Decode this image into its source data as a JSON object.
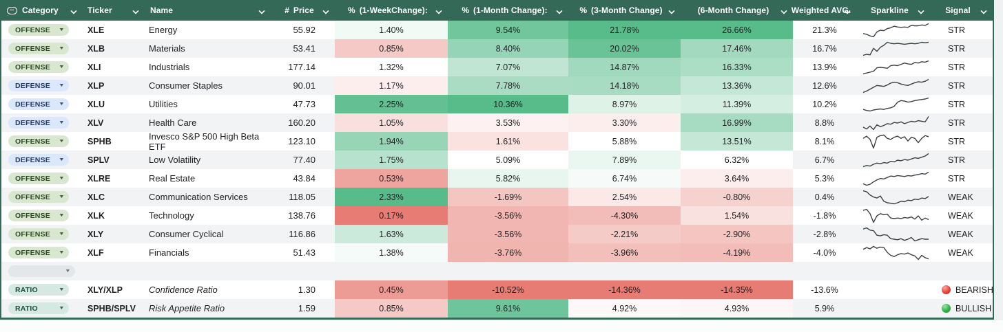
{
  "table": {
    "columns": [
      {
        "key": "category",
        "label": "Category",
        "type_icon": "dropdown-chip",
        "align": "left"
      },
      {
        "key": "ticker",
        "label": "Ticker",
        "align": "left"
      },
      {
        "key": "name",
        "label": "Name",
        "align": "left"
      },
      {
        "key": "price",
        "label": "Price",
        "type_icon": "number",
        "align": "center"
      },
      {
        "key": "wk",
        "label": "(1-WeekChange):",
        "type_icon": "percent",
        "align": "center"
      },
      {
        "key": "m1",
        "label": "(1-Month Change):",
        "type_icon": "percent",
        "align": "center"
      },
      {
        "key": "m3",
        "label": "(3-Month Change)",
        "type_icon": "percent",
        "align": "center"
      },
      {
        "key": "m6",
        "label": "(6-Month Change)",
        "align": "center"
      },
      {
        "key": "wavg",
        "label": "Weighted AVG.",
        "align": "center"
      },
      {
        "key": "spark",
        "label": "Sparkline",
        "align": "center"
      },
      {
        "key": "signal",
        "label": "Signal",
        "align": "center"
      }
    ],
    "type_icons": {
      "number": "#",
      "percent": "%"
    },
    "rows": [
      {
        "category": "OFFENSE",
        "ticker": "XLE",
        "name": "Energy",
        "price": "55.92",
        "wk": 1.4,
        "m1": 9.54,
        "m3": 21.78,
        "m6": 26.66,
        "wavg": 21.3,
        "signal": {
          "text": "STR"
        },
        "spark": [
          22,
          20,
          16,
          14,
          26,
          30,
          29,
          34,
          36,
          40,
          38,
          37,
          38,
          37,
          42,
          41,
          41,
          43,
          42,
          46
        ]
      },
      {
        "category": "OFFENSE",
        "ticker": "XLB",
        "name": "Materials",
        "price": "53.41",
        "wk": 0.85,
        "m1": 8.4,
        "m3": 20.02,
        "m6": 17.46,
        "wavg": 16.7,
        "signal": {
          "text": "STR"
        },
        "spark": [
          10,
          12,
          11,
          24,
          18,
          26,
          30,
          36,
          34,
          33,
          34,
          33,
          32,
          33,
          34,
          33,
          34,
          36,
          35,
          36
        ]
      },
      {
        "category": "OFFENSE",
        "ticker": "XLI",
        "name": "Industrials",
        "price": "177.14",
        "wk": 1.32,
        "m1": 7.07,
        "m3": 14.87,
        "m6": 16.33,
        "wavg": 13.9,
        "signal": {
          "text": "STR"
        },
        "spark": [
          8,
          10,
          12,
          14,
          22,
          23,
          22,
          21,
          27,
          28,
          27,
          30,
          33,
          31,
          30,
          34,
          33,
          36,
          35,
          38
        ]
      },
      {
        "category": "DEFENSE",
        "ticker": "XLP",
        "name": "Consumer Staples",
        "price": "90.01",
        "wk": 1.17,
        "m1": 7.78,
        "m3": 14.18,
        "m6": 13.36,
        "wavg": 12.6,
        "signal": {
          "text": "STR"
        },
        "spark": [
          8,
          11,
          15,
          19,
          23,
          22,
          21,
          24,
          28,
          30,
          29,
          26,
          24,
          23,
          26,
          29,
          31,
          30,
          32,
          36
        ]
      },
      {
        "category": "DEFENSE",
        "ticker": "XLU",
        "name": "Utilities",
        "price": "47.73",
        "wk": 2.25,
        "m1": 10.36,
        "m3": 8.97,
        "m6": 11.39,
        "wavg": 10.2,
        "signal": {
          "text": "STR"
        },
        "spark": [
          10,
          8,
          7,
          9,
          10,
          11,
          10,
          12,
          13,
          16,
          24,
          27,
          26,
          24,
          25,
          27,
          28,
          29,
          30,
          32
        ]
      },
      {
        "category": "DEFENSE",
        "ticker": "XLV",
        "name": "Health Care",
        "price": "160.20",
        "wk": 1.05,
        "m1": 3.53,
        "m3": 3.3,
        "m6": 16.99,
        "wavg": 8.8,
        "signal": {
          "text": "STR"
        },
        "spark": [
          16,
          13,
          18,
          12,
          20,
          17,
          19,
          22,
          21,
          24,
          23,
          25,
          22,
          24,
          26,
          25,
          27,
          26,
          25,
          34
        ]
      },
      {
        "category": "OFFENSE",
        "ticker": "SPHB",
        "name": "Invesco S&P 500 High Beta ETF",
        "price": "123.10",
        "wk": 1.94,
        "m1": 1.61,
        "m3": 5.88,
        "m6": 13.51,
        "wavg": 8.1,
        "signal": {
          "text": "STR"
        },
        "spark": [
          26,
          30,
          24,
          8,
          28,
          31,
          32,
          26,
          24,
          28,
          30,
          26,
          29,
          21,
          28,
          26,
          18,
          26,
          31,
          29
        ]
      },
      {
        "category": "DEFENSE",
        "ticker": "SPLV",
        "name": "Low Volatility",
        "price": "77.40",
        "wk": 1.75,
        "m1": 5.09,
        "m3": 7.89,
        "m6": 6.32,
        "wavg": 6.7,
        "signal": {
          "text": "STR"
        },
        "spark": [
          8,
          10,
          9,
          12,
          14,
          13,
          15,
          14,
          17,
          16,
          19,
          18,
          20,
          19,
          21,
          23,
          22,
          24,
          26,
          30
        ]
      },
      {
        "category": "OFFENSE",
        "ticker": "XLRE",
        "name": "Real Estate",
        "price": "43.84",
        "wk": 0.53,
        "m1": 5.82,
        "m3": 6.74,
        "m6": 3.64,
        "wavg": 5.3,
        "signal": {
          "text": "STR"
        },
        "spark": [
          12,
          9,
          11,
          16,
          20,
          23,
          22,
          25,
          28,
          27,
          29,
          28,
          27,
          29,
          28,
          30,
          31,
          33,
          32,
          36
        ]
      },
      {
        "category": "OFFENSE",
        "ticker": "XLC",
        "name": "Communication Services",
        "price": "118.05",
        "wk": 2.33,
        "m1": -1.69,
        "m3": 2.54,
        "m6": -0.8,
        "wavg": 0.4,
        "signal": {
          "text": "WEAK"
        },
        "spark": [
          34,
          32,
          26,
          22,
          20,
          24,
          14,
          11,
          10,
          9,
          11,
          14,
          13,
          16,
          15,
          18,
          17,
          20,
          19,
          23
        ]
      },
      {
        "category": "OFFENSE",
        "ticker": "XLK",
        "name": "Technology",
        "price": "138.76",
        "wk": 0.17,
        "m1": -3.56,
        "m3": -4.3,
        "m6": 1.54,
        "wavg": -1.8,
        "signal": {
          "text": "WEAK"
        },
        "spark": [
          32,
          34,
          26,
          10,
          22,
          26,
          24,
          25,
          18,
          17,
          18,
          17,
          19,
          18,
          20,
          16,
          22,
          14,
          18,
          15
        ]
      },
      {
        "category": "OFFENSE",
        "ticker": "XLY",
        "name": "Consumer Cyclical",
        "price": "116.86",
        "wk": 1.63,
        "m1": -3.56,
        "m3": -2.21,
        "m6": -2.9,
        "wavg": -2.8,
        "signal": {
          "text": "WEAK"
        },
        "spark": [
          32,
          34,
          30,
          29,
          21,
          20,
          22,
          21,
          15,
          14,
          13,
          15,
          12,
          14,
          17,
          11,
          13,
          15,
          14,
          14
        ]
      },
      {
        "category": "OFFENSE",
        "ticker": "XLF",
        "name": "Financials",
        "price": "51.43",
        "wk": 1.38,
        "m1": -3.76,
        "m3": -3.96,
        "m6": -4.19,
        "wavg": -4.0,
        "signal": {
          "text": "WEAK"
        },
        "spark": [
          26,
          29,
          27,
          31,
          28,
          30,
          29,
          21,
          16,
          14,
          17,
          19,
          18,
          20,
          17,
          15,
          9,
          16,
          12,
          10
        ]
      },
      {
        "empty": true
      },
      {
        "category": "RATIO",
        "ticker": "XLY/XLP",
        "name": "Confidence Ratio",
        "italic": true,
        "price": "1.30",
        "wk": 0.45,
        "m1": -10.52,
        "m3": -14.36,
        "m6": -14.35,
        "wavg": -13.6,
        "signal": {
          "text": "BEARISH",
          "dot": "bearish"
        }
      },
      {
        "category": "RATIO",
        "ticker": "SPHB/SPLV",
        "name": "Risk Appetite Ratio",
        "italic": true,
        "price": "1.59,",
        "wk": 0.85,
        "m1": 9.61,
        "m3": 4.92,
        "m6": 4.93,
        "wavg": 5.9,
        "signal": {
          "text": "BULLISH",
          "dot": "bullish"
        }
      }
    ],
    "category_styles": {
      "OFFENSE": {
        "bg": "#d9e7d1",
        "text": "#2c4a21"
      },
      "DEFENSE": {
        "bg": "#dbe7fa",
        "text": "#253a66"
      },
      "RATIO": {
        "bg": "#d6e8e2",
        "text": "#1d4d41"
      }
    },
    "color_scale": {
      "min_color": "#e67c73",
      "mid_color": "#ffffff",
      "max_color": "#57bb8a",
      "midpoint": "50th percentile"
    },
    "signal_dot_colors": {
      "bearish": "#ea4335",
      "bullish": "#34a853"
    },
    "header_bg": "#346957",
    "sparkline_color": "#3c4043"
  }
}
